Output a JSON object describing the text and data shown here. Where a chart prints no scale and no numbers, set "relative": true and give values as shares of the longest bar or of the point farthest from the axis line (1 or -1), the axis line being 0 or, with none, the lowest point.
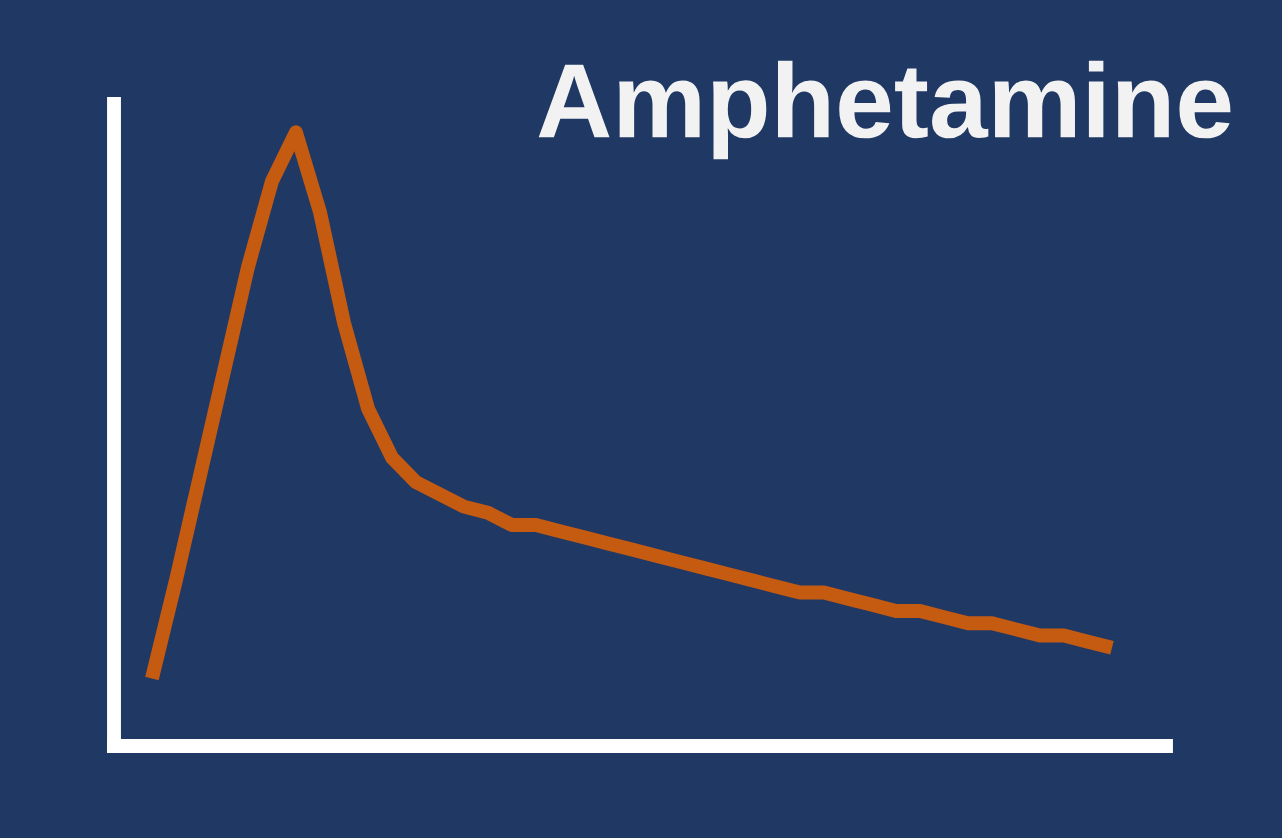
{
  "chart_data": {
    "type": "line",
    "title": "Amphetamine",
    "relative": true,
    "categories": [
      null,
      null,
      null,
      null,
      null,
      null,
      null,
      null,
      null,
      null,
      null,
      null,
      null,
      null,
      null,
      null,
      null,
      null,
      null,
      null,
      null,
      null,
      null,
      null,
      null,
      null,
      null,
      null,
      null,
      null,
      null,
      null,
      null,
      null,
      null,
      null,
      null,
      null,
      null,
      null,
      null
    ],
    "series": [
      {
        "color": "#c55a11",
        "values": [
          0.11,
          0.27,
          0.44,
          0.61,
          0.78,
          0.92,
          1,
          0.87,
          0.69,
          0.55,
          0.47,
          0.43,
          0.41,
          0.39,
          0.38,
          0.36,
          0.36,
          0.35,
          0.34,
          0.33,
          0.32,
          0.31,
          0.3,
          0.29,
          0.28,
          0.27,
          0.26,
          0.25,
          0.25,
          0.24,
          0.23,
          0.22,
          0.22,
          0.21,
          0.2,
          0.2,
          0.19,
          0.18,
          0.18,
          0.17,
          0.16
        ]
      }
    ]
  }
}
